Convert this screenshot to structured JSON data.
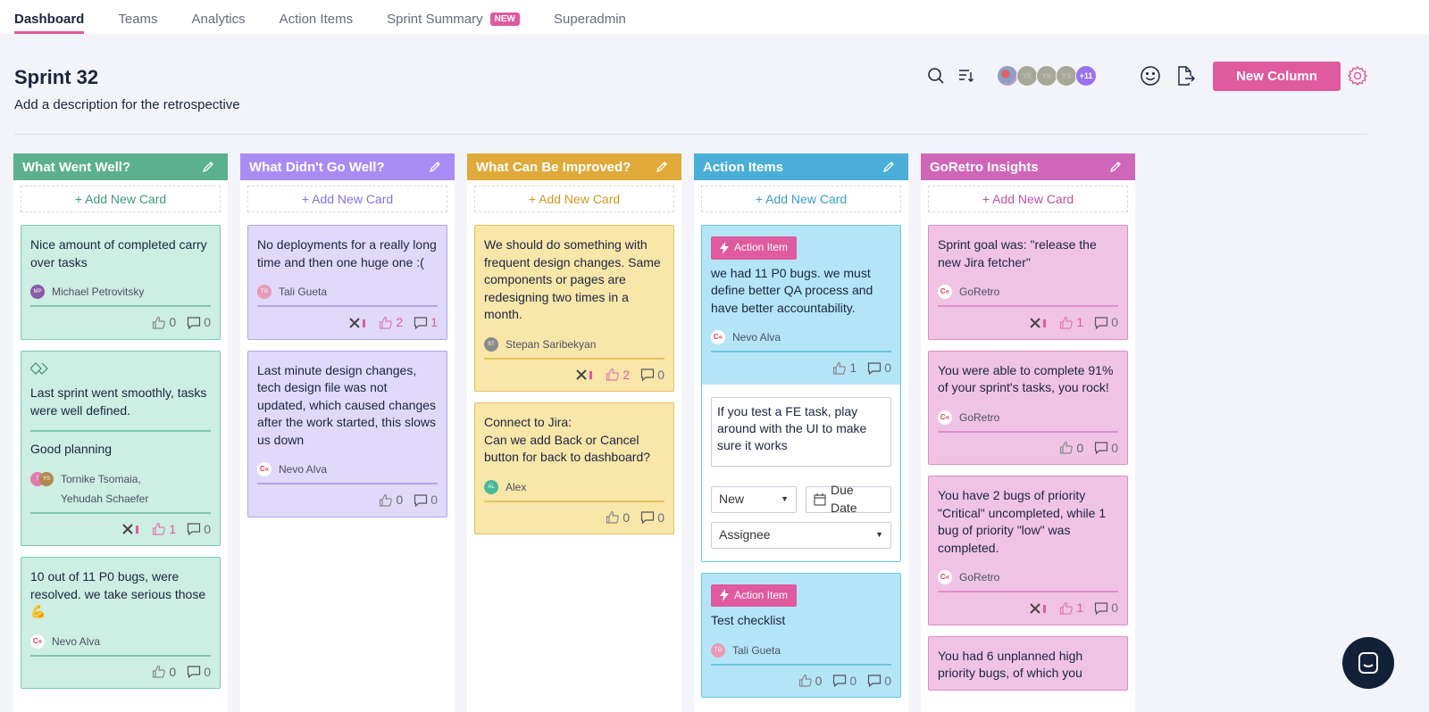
{
  "nav": {
    "tabs": [
      {
        "label": "Dashboard",
        "active": true
      },
      {
        "label": "Teams"
      },
      {
        "label": "Analytics"
      },
      {
        "label": "Action Items"
      },
      {
        "label": "Sprint Summary",
        "badge": "NEW"
      },
      {
        "label": "Superadmin"
      }
    ]
  },
  "header": {
    "title": "Sprint 32",
    "description": "Add a description for the retrospective",
    "avatars": [
      "",
      "YE",
      "YK",
      "YS"
    ],
    "more_count": "+11",
    "new_column_label": "New Column"
  },
  "columns": [
    {
      "title": "What Went Well?",
      "header": "#5bb08f",
      "accent": "#3d9b7a",
      "card_bg": "#cdeee2",
      "card_border": "#80c9ae",
      "add_label": "+ Add New Card",
      "cards": [
        {
          "text": "Nice amount of completed carry over tasks",
          "authors": [
            {
              "initials": "MP",
              "color": "#8a5aa8",
              "name": "Michael Petrovitsky"
            }
          ],
          "likes": "0",
          "comments": "0"
        },
        {
          "merge_icon": true,
          "text": "Last sprint went smoothly, tasks were well defined.",
          "second_text": "Good planning",
          "authors": [
            {
              "initials": "T",
              "color": "#e07ab0",
              "name": "Tornike Tsomaia,"
            },
            {
              "initials": "YS",
              "color": "#b08a50",
              "name": "Yehudah Schaefer"
            }
          ],
          "flag": true,
          "likes": "1",
          "comments": "0"
        },
        {
          "text": "10 out of 11 P0 bugs, were resolved. we take serious those 💪",
          "authors": [
            {
              "logo": "C«",
              "name": "Nevo Alva"
            }
          ],
          "likes": "0",
          "comments": "0"
        }
      ]
    },
    {
      "title": "What Didn't Go Well?",
      "header": "#a98cf3",
      "accent": "#8a70e0",
      "card_bg": "#e0d9fa",
      "card_border": "#b3a3ef",
      "add_label": "+ Add New Card",
      "cards": [
        {
          "text": "No deployments for a really long time and then one huge one :(",
          "authors": [
            {
              "initials": "TG",
              "color": "#e89ab8",
              "name": "Tali Gueta"
            }
          ],
          "flag": true,
          "likes": "2",
          "comments": "1",
          "pink": true
        },
        {
          "text": "Last minute design changes, tech design file was not updated, which caused changes after the work started, this slows us down",
          "authors": [
            {
              "logo": "C«",
              "name": "Nevo Alva"
            }
          ],
          "likes": "0",
          "comments": "0"
        }
      ]
    },
    {
      "title": "What Can Be Improved?",
      "header": "#dfaa3a",
      "accent": "#d09a20",
      "card_bg": "#f9e6a9",
      "card_border": "#e6c25e",
      "add_label": "+ Add New Card",
      "cards": [
        {
          "text": "We should do something with frequent design changes. Same components or pages are redesigning two times in a month.",
          "authors": [
            {
              "initials": "ST",
              "color": "#8a8a8a",
              "name": "Stepan Saribekyan"
            }
          ],
          "flag": true,
          "likes": "2",
          "comments": "0",
          "pink_like": true
        },
        {
          "text": "Connect to Jira:\nCan we add Back or Cancel button for back to dashboard?",
          "authors": [
            {
              "initials": "AL",
              "color": "#4cb89a",
              "name": "Alex"
            }
          ],
          "likes": "0",
          "comments": "0"
        }
      ]
    },
    {
      "title": "Action Items",
      "header": "#4aaed8",
      "accent": "#3a9ec8",
      "card_bg": "#b4e5f7",
      "card_border": "#6cc3e3",
      "add_label": "+ Add New Card",
      "cards": [
        {
          "badge": "Action Item",
          "text": "we had 11 P0 bugs. we must define better QA process and have better accountability.",
          "authors": [
            {
              "logo": "C«",
              "name": "Nevo Alva"
            }
          ],
          "likes": "1",
          "comments": "0",
          "editor": {
            "text": "If you test a FE task, play around with the UI to make sure it works",
            "status": "New",
            "due_date": "Due Date",
            "assignee": "Assignee"
          }
        },
        {
          "badge": "Action Item",
          "text": "Test checklist",
          "authors": [
            {
              "initials": "TG",
              "color": "#e89ab8",
              "name": "Tali Gueta"
            }
          ],
          "likes": "0",
          "comments": "0",
          "comments2": "0"
        }
      ]
    },
    {
      "title": "GoRetro Insights",
      "header": "#cf66b9",
      "accent": "#c050a8",
      "card_bg": "#f0c3e5",
      "card_border": "#dc8ecb",
      "add_label": "+ Add New Card",
      "cards": [
        {
          "text": "Sprint goal was: \"release the new Jira fetcher\"",
          "authors": [
            {
              "logo": "C«",
              "name": "GoRetro"
            }
          ],
          "flag": true,
          "likes": "1",
          "comments": "0",
          "pink_like": true
        },
        {
          "text": "You were able to complete 91% of your sprint's tasks, you rock!",
          "authors": [
            {
              "logo": "C«",
              "name": "GoRetro"
            }
          ],
          "likes": "0",
          "comments": "0"
        },
        {
          "text": "You have 2 bugs of priority \"Critical\" uncompleted, while 1 bug of priority \"low\" was completed.",
          "authors": [
            {
              "logo": "C«",
              "name": "GoRetro"
            }
          ],
          "flag": true,
          "likes": "1",
          "comments": "0",
          "pink_like": true
        },
        {
          "text": "You had 6 unplanned high priority bugs, of which you",
          "authors": [],
          "likes": "",
          "comments": ""
        }
      ]
    }
  ]
}
